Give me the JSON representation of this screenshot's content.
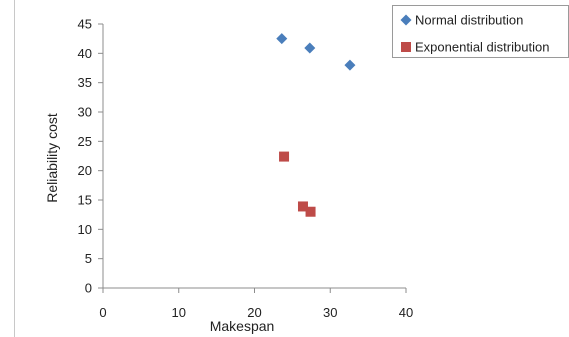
{
  "chart_data": {
    "type": "scatter",
    "title": "",
    "xlabel": "Makespan",
    "ylabel": "Reliability cost",
    "xlim": [
      0,
      40
    ],
    "ylim": [
      0,
      45
    ],
    "x_ticks": [
      "0",
      "10",
      "20",
      "30",
      "40"
    ],
    "y_ticks": [
      "0",
      "5",
      "10",
      "15",
      "20",
      "25",
      "30",
      "35",
      "40",
      "45"
    ],
    "grid": false,
    "legend_position": "top-right",
    "series": [
      {
        "name": "Normal distribution",
        "marker": "diamond",
        "color": "#4a7ebb",
        "points": [
          {
            "x": 23.6,
            "y": 42.5
          },
          {
            "x": 27.3,
            "y": 40.9
          },
          {
            "x": 32.6,
            "y": 38.0
          }
        ]
      },
      {
        "name": "Exponential distribution",
        "marker": "square",
        "color": "#be4b48",
        "points": [
          {
            "x": 23.9,
            "y": 22.4
          },
          {
            "x": 26.4,
            "y": 13.9
          },
          {
            "x": 27.4,
            "y": 13.0
          }
        ]
      }
    ]
  }
}
